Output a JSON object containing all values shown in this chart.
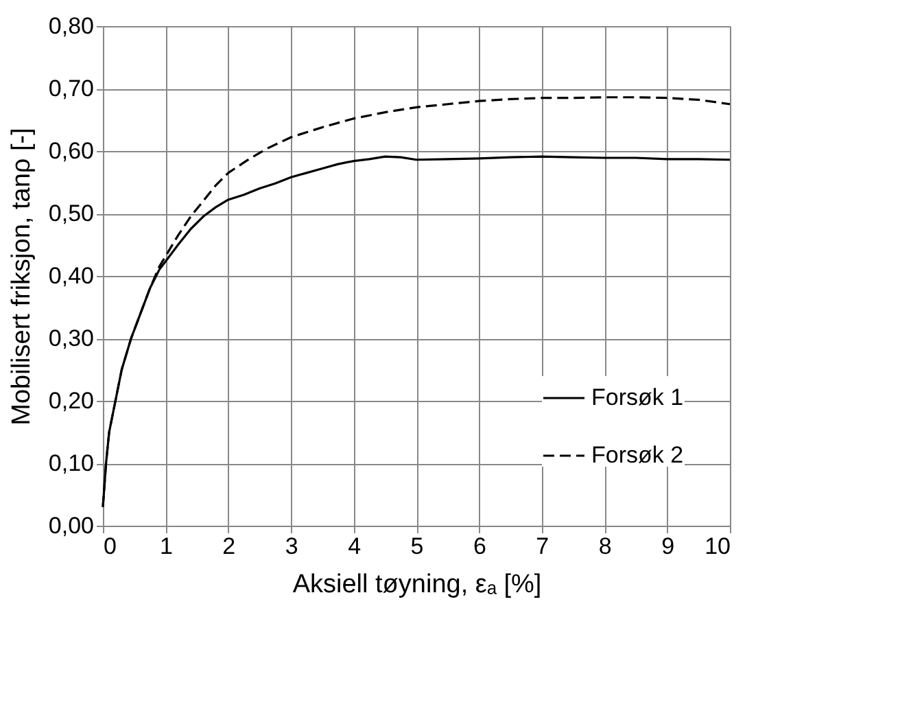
{
  "chart_data": {
    "type": "line",
    "xlabel": "Aksiell tøyning, εₐ [%]",
    "ylabel": "Mobilisert friksjon, tanρ  [-]",
    "xlim": [
      0,
      10
    ],
    "ylim": [
      0,
      0.8
    ],
    "xticks": [
      0,
      1,
      2,
      3,
      4,
      5,
      6,
      7,
      8,
      9,
      10
    ],
    "yticks": [
      {
        "value": 0,
        "label": "0,00"
      },
      {
        "value": 0.1,
        "label": "0,10"
      },
      {
        "value": 0.2,
        "label": "0,20"
      },
      {
        "value": 0.3,
        "label": "0,30"
      },
      {
        "value": 0.4,
        "label": "0,40"
      },
      {
        "value": 0.5,
        "label": "0,50"
      },
      {
        "value": 0.6,
        "label": "0,60"
      },
      {
        "value": 0.7,
        "label": "0,70"
      },
      {
        "value": 0.8,
        "label": "0,80"
      }
    ],
    "grid": true,
    "legend": "right",
    "marker": "none",
    "series": [
      {
        "name": "Forsøk 1",
        "color": "#000000",
        "line_style": "solid",
        "x": [
          0,
          0.05,
          0.1,
          0.2,
          0.3,
          0.45,
          0.6,
          0.75,
          0.9,
          1.05,
          1.2,
          1.4,
          1.6,
          1.8,
          2.0,
          2.25,
          2.5,
          2.75,
          3.0,
          3.25,
          3.5,
          3.75,
          4.0,
          4.25,
          4.5,
          4.75,
          5.0,
          5.5,
          6,
          6.5,
          7,
          7.5,
          8,
          8.5,
          9,
          9.5,
          10
        ],
        "values": [
          0.03,
          0.1,
          0.15,
          0.2,
          0.25,
          0.3,
          0.34,
          0.38,
          0.41,
          0.43,
          0.45,
          0.475,
          0.495,
          0.51,
          0.522,
          0.53,
          0.54,
          0.548,
          0.558,
          0.565,
          0.572,
          0.579,
          0.584,
          0.587,
          0.591,
          0.59,
          0.586,
          0.587,
          0.588,
          0.59,
          0.591,
          0.59,
          0.589,
          0.589,
          0.587,
          0.587,
          0.586
        ]
      },
      {
        "name": "Forsøk 2",
        "color": "#000000",
        "line_style": "dashed",
        "x": [
          0,
          0.05,
          0.1,
          0.2,
          0.3,
          0.45,
          0.6,
          0.75,
          0.9,
          1.05,
          1.2,
          1.4,
          1.6,
          1.8,
          2.0,
          2.3,
          2.6,
          3.0,
          3.5,
          4.0,
          4.5,
          5.0,
          5.5,
          6,
          6.5,
          7,
          7.5,
          8,
          8.5,
          9,
          9.5,
          10
        ],
        "values": [
          0.03,
          0.1,
          0.15,
          0.2,
          0.25,
          0.3,
          0.34,
          0.38,
          0.415,
          0.44,
          0.465,
          0.495,
          0.52,
          0.545,
          0.565,
          0.585,
          0.603,
          0.622,
          0.638,
          0.652,
          0.662,
          0.67,
          0.675,
          0.68,
          0.683,
          0.685,
          0.685,
          0.686,
          0.686,
          0.685,
          0.682,
          0.675
        ]
      }
    ]
  }
}
